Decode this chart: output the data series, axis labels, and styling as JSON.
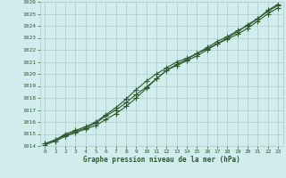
{
  "xlabel": "Graphe pression niveau de la mer (hPa)",
  "bg_color": "#d0ecec",
  "grid_color": "#b0c8c8",
  "line_color": "#2d5a2d",
  "text_color": "#2d5a2d",
  "xlim": [
    -0.5,
    23.5
  ],
  "ylim": [
    1014,
    1026
  ],
  "yticks": [
    1014,
    1015,
    1016,
    1017,
    1018,
    1019,
    1020,
    1021,
    1022,
    1023,
    1024,
    1025,
    1026
  ],
  "xticks": [
    0,
    1,
    2,
    3,
    4,
    5,
    6,
    7,
    8,
    9,
    10,
    11,
    12,
    13,
    14,
    15,
    16,
    17,
    18,
    19,
    20,
    21,
    22,
    23
  ],
  "series1": [
    1014.1,
    1014.4,
    1014.8,
    1015.1,
    1015.4,
    1015.7,
    1016.2,
    1016.7,
    1017.3,
    1018.0,
    1018.8,
    1019.6,
    1020.3,
    1020.8,
    1021.2,
    1021.7,
    1022.2,
    1022.7,
    1023.1,
    1023.6,
    1024.0,
    1024.6,
    1025.3,
    1025.8
  ],
  "series2": [
    1014.2,
    1014.5,
    1014.9,
    1015.2,
    1015.5,
    1015.9,
    1016.5,
    1017.0,
    1017.6,
    1018.3,
    1018.9,
    1019.6,
    1020.3,
    1020.7,
    1021.1,
    1021.5,
    1022.0,
    1022.5,
    1023.0,
    1023.5,
    1024.1,
    1024.6,
    1025.2,
    1025.7
  ],
  "series3": [
    1014.2,
    1014.5,
    1015.0,
    1015.3,
    1015.6,
    1016.0,
    1016.6,
    1017.2,
    1017.9,
    1018.7,
    1019.4,
    1020.0,
    1020.5,
    1021.0,
    1021.3,
    1021.7,
    1022.1,
    1022.5,
    1022.9,
    1023.3,
    1023.8,
    1024.4,
    1025.0,
    1025.5
  ],
  "marker": "+",
  "markersize": 4,
  "linewidth": 0.8
}
